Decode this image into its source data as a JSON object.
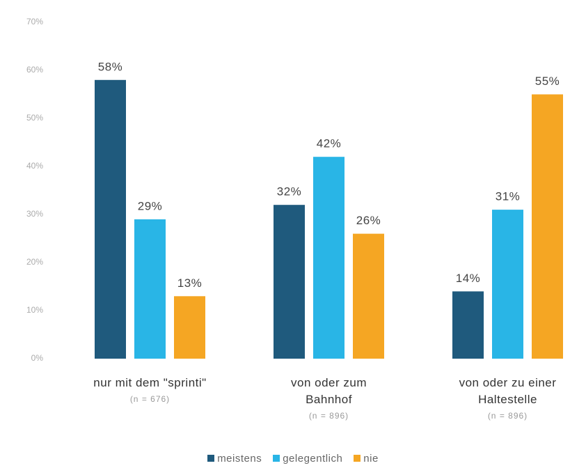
{
  "chart_data": {
    "type": "bar",
    "categories": [
      "nur mit dem \"sprinti\"",
      "von oder zum Bahnhof",
      "von oder zu einer Haltestelle"
    ],
    "category_notes": [
      "(n = 676)",
      "(n = 896)",
      "(n = 896)"
    ],
    "series": [
      {
        "name": "meistens",
        "color": "#1f5a7d",
        "values": [
          58,
          32,
          14
        ],
        "value_labels": [
          "58%",
          "32%",
          "14%"
        ]
      },
      {
        "name": "gelegentlich",
        "color": "#29b5e6",
        "values": [
          29,
          42,
          31
        ],
        "value_labels": [
          "29%",
          "42%",
          "31%"
        ]
      },
      {
        "name": "nie",
        "color": "#f5a623",
        "values": [
          13,
          26,
          55
        ],
        "value_labels": [
          "13%",
          "26%",
          "55%"
        ]
      }
    ],
    "ylim": [
      0,
      70
    ],
    "yticks": [
      {
        "value": 0,
        "label": "0%"
      },
      {
        "value": 10,
        "label": "10%"
      },
      {
        "value": 20,
        "label": "20%"
      },
      {
        "value": 30,
        "label": "30%"
      },
      {
        "value": 40,
        "label": "40%"
      },
      {
        "value": 50,
        "label": "50%"
      },
      {
        "value": 60,
        "label": "60%"
      },
      {
        "value": 70,
        "label": "70%"
      }
    ],
    "grid": false,
    "legend": "bottom"
  }
}
